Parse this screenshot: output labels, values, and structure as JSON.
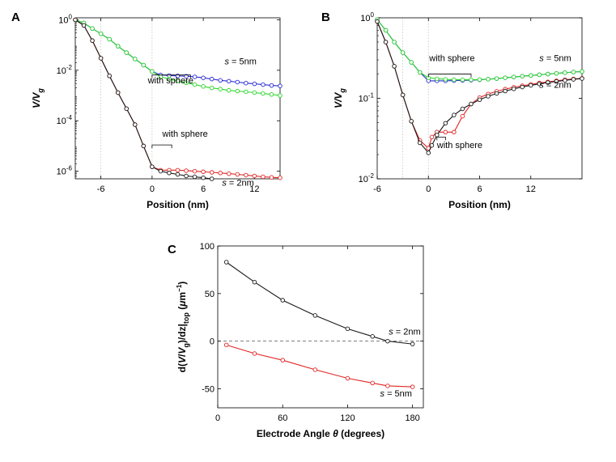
{
  "panel_letters": {
    "A": "A",
    "B": "B",
    "C": "C"
  },
  "chart_data": [
    {
      "panel": "A",
      "type": "line",
      "title": "",
      "xlabel": "Position (nm)",
      "ylabel": {
        "main": "V/V",
        "sub": "g"
      },
      "xscale": "linear",
      "yscale": "log",
      "xlim": [
        -9,
        15
      ],
      "ylim": [
        5e-07,
        1.2
      ],
      "xticks": [
        -6,
        0,
        6,
        12
      ],
      "yticks": [
        {
          "value": 1,
          "base": "10",
          "exp": "0"
        },
        {
          "value": 0.01,
          "base": "10",
          "exp": "-2"
        },
        {
          "value": 0.0001,
          "base": "10",
          "exp": "-4"
        },
        {
          "value": 1e-06,
          "base": "10",
          "exp": "-6"
        }
      ],
      "vlines": [
        -6,
        0
      ],
      "series": [
        {
          "name": "s = 5nm with sphere",
          "color": "#2b2bd6",
          "x": [
            -9,
            -8,
            -7,
            -6,
            -5,
            -4,
            -3,
            -2,
            -1,
            0,
            1,
            2,
            3,
            4,
            5,
            6,
            7,
            8,
            9,
            10,
            11,
            12,
            13,
            14,
            15
          ],
          "y": [
            1,
            0.75,
            0.45,
            0.28,
            0.17,
            0.09,
            0.05,
            0.028,
            0.016,
            0.009,
            0.0065,
            0.0062,
            0.006,
            0.0058,
            0.0055,
            0.005,
            0.0045,
            0.004,
            0.0037,
            0.0034,
            0.0031,
            0.0029,
            0.0027,
            0.0025,
            0.0024
          ]
        },
        {
          "name": "s = 5nm",
          "color": "#2bd62b",
          "x": [
            -9,
            -8,
            -7,
            -6,
            -5,
            -4,
            -3,
            -2,
            -1,
            0,
            1,
            2,
            3,
            4,
            5,
            6,
            7,
            8,
            9,
            10,
            11,
            12,
            13,
            14,
            15
          ],
          "y": [
            1,
            0.75,
            0.45,
            0.28,
            0.17,
            0.09,
            0.05,
            0.028,
            0.016,
            0.009,
            0.0055,
            0.0045,
            0.0038,
            0.0032,
            0.0027,
            0.0023,
            0.002,
            0.0018,
            0.0016,
            0.0015,
            0.0014,
            0.0013,
            0.0012,
            0.0011,
            0.001
          ]
        },
        {
          "name": "s = 2nm with sphere",
          "color": "#e02525",
          "x": [
            -9,
            -8,
            -7,
            -6,
            -5,
            -4,
            -3,
            -2,
            -1,
            0,
            1,
            2,
            3,
            4,
            5,
            6,
            7,
            8,
            9,
            10,
            11,
            12,
            13,
            14,
            15
          ],
          "y": [
            1,
            0.6,
            0.15,
            0.03,
            0.006,
            0.0013,
            0.0003,
            7e-05,
            1e-05,
            1.5e-06,
            1.1e-06,
            1.1e-06,
            1.1e-06,
            1.05e-06,
            1e-06,
            9.5e-07,
            9e-07,
            8.5e-07,
            8e-07,
            7.5e-07,
            7e-07,
            6.5e-07,
            6e-07,
            5.7e-07,
            5.5e-07
          ]
        },
        {
          "name": "s = 2nm",
          "color": "#1a1a1a",
          "x": [
            -9,
            -8,
            -7,
            -6,
            -5,
            -4,
            -3,
            -2,
            -1,
            0,
            1,
            2,
            3,
            4,
            5,
            6,
            7,
            8,
            9,
            10,
            11,
            12,
            13,
            14,
            15
          ],
          "y": [
            1,
            0.6,
            0.15,
            0.03,
            0.006,
            0.0013,
            0.0003,
            7e-05,
            1e-05,
            1.5e-06,
            1e-06,
            8.5e-07,
            7.5e-07,
            6.5e-07,
            6e-07,
            5.5e-07,
            5e-07,
            4.5e-07,
            4.2e-07,
            4e-07,
            3.8e-07,
            3.6e-07,
            3.4e-07,
            3.2e-07,
            3e-07
          ]
        }
      ],
      "annotations": [
        {
          "label_italic": "s",
          "label_rest": " = 5nm",
          "x": 8.5,
          "y": 0.017
        },
        {
          "text": "with sphere",
          "x": -0.5,
          "y": 0.003,
          "bracket": [
            0,
            0.0065,
            4.5,
            0.0065
          ]
        },
        {
          "text": "with sphere",
          "x": 1.2,
          "y": 2.3e-05,
          "bracket": [
            0,
            1.1e-05,
            2.3,
            1.1e-05
          ]
        },
        {
          "label_italic": "s",
          "label_rest": " = 2nm",
          "x": 8.2,
          "y": 2.7e-07
        }
      ]
    },
    {
      "panel": "B",
      "type": "line",
      "title": "",
      "xlabel": "Position (nm)",
      "ylabel": {
        "main": "V/V",
        "sub": "g"
      },
      "xscale": "linear",
      "yscale": "log",
      "xlim": [
        -6,
        18
      ],
      "ylim": [
        0.01,
        1
      ],
      "xticks": [
        -6,
        0,
        6,
        12
      ],
      "yticks": [
        {
          "value": 1,
          "base": "10",
          "exp": "0"
        },
        {
          "value": 0.1,
          "base": "10",
          "exp": "-1"
        },
        {
          "value": 0.01,
          "base": "10",
          "exp": "-2"
        }
      ],
      "vlines": [
        -3,
        0
      ],
      "series": [
        {
          "name": "s = 5nm with sphere",
          "color": "#2b2bd6",
          "x": [
            -6,
            -5,
            -4,
            -3,
            -2,
            -1,
            0,
            1,
            2,
            3,
            4,
            5,
            6,
            7,
            8,
            9,
            10,
            11,
            12,
            13,
            14,
            15,
            16,
            17,
            18
          ],
          "y": [
            0.95,
            0.7,
            0.5,
            0.37,
            0.28,
            0.21,
            0.165,
            0.165,
            0.165,
            0.166,
            0.167,
            0.168,
            0.17,
            0.173,
            0.176,
            0.18,
            0.184,
            0.188,
            0.192,
            0.196,
            0.2,
            0.204,
            0.208,
            0.212,
            0.215
          ]
        },
        {
          "name": "s = 5nm",
          "color": "#2bd62b",
          "x": [
            -6,
            -5,
            -4,
            -3,
            -2,
            -1,
            0,
            1,
            2,
            3,
            4,
            5,
            6,
            7,
            8,
            9,
            10,
            11,
            12,
            13,
            14,
            15,
            16,
            17,
            18
          ],
          "y": [
            0.95,
            0.7,
            0.5,
            0.37,
            0.28,
            0.21,
            0.18,
            0.175,
            0.172,
            0.17,
            0.17,
            0.17,
            0.171,
            0.173,
            0.176,
            0.18,
            0.184,
            0.188,
            0.192,
            0.196,
            0.2,
            0.204,
            0.208,
            0.212,
            0.215
          ]
        },
        {
          "name": "s = 2nm with sphere",
          "color": "#e02525",
          "x": [
            -6,
            -5,
            -4,
            -3,
            -2,
            -1,
            0,
            0.4,
            1,
            2,
            3,
            4,
            5,
            6,
            7,
            8,
            9,
            10,
            11,
            12,
            13,
            14,
            15,
            16,
            17,
            18
          ],
          "y": [
            0.9,
            0.5,
            0.25,
            0.11,
            0.052,
            0.03,
            0.024,
            0.033,
            0.038,
            0.038,
            0.038,
            0.06,
            0.085,
            0.102,
            0.113,
            0.122,
            0.13,
            0.137,
            0.143,
            0.149,
            0.155,
            0.16,
            0.165,
            0.17,
            0.174,
            0.177
          ]
        },
        {
          "name": "s = 2nm",
          "color": "#1a1a1a",
          "x": [
            -6,
            -5,
            -4,
            -3,
            -2,
            -1,
            0,
            0.4,
            1,
            2,
            3,
            4,
            5,
            6,
            7,
            8,
            9,
            10,
            11,
            12,
            13,
            14,
            15,
            16,
            17,
            18
          ],
          "y": [
            0.9,
            0.5,
            0.25,
            0.11,
            0.052,
            0.028,
            0.021,
            0.026,
            0.035,
            0.049,
            0.062,
            0.074,
            0.085,
            0.096,
            0.106,
            0.115,
            0.123,
            0.131,
            0.138,
            0.145,
            0.151,
            0.157,
            0.162,
            0.167,
            0.172,
            0.176
          ]
        }
      ],
      "annotations": [
        {
          "label_italic": "s",
          "label_rest": " = 5nm",
          "x": 13,
          "y": 0.29
        },
        {
          "text": "with sphere",
          "x": 0.1,
          "y": 0.29,
          "bracket": [
            0,
            0.2,
            5.0,
            0.2
          ]
        },
        {
          "label_italic": "s",
          "label_rest": " = 2nm",
          "x": 13,
          "y": 0.135
        },
        {
          "text": "with sphere",
          "x": 1.0,
          "y": 0.024,
          "bracket": [
            1.0,
            0.033,
            2.0,
            0.033
          ]
        }
      ]
    },
    {
      "panel": "C",
      "type": "line",
      "title": "",
      "xlabel": {
        "main": "Electrode Angle ",
        "italic": "θ",
        "rest": " (degrees)"
      },
      "ylabel": {
        "part1": "d(",
        "italic1": "V",
        "part2": "/",
        "italic2": "V",
        "sub1": "g",
        "part3": ")/dz|",
        "sub2": "top",
        "part4": " (",
        "italic3": "μ",
        "part5": "m",
        "sup": "−1",
        "part6": ")"
      },
      "xscale": "linear",
      "yscale": "linear",
      "xlim": [
        0,
        190
      ],
      "ylim": [
        -70,
        100
      ],
      "xticks": [
        0,
        60,
        120,
        180
      ],
      "yticks": [
        100,
        50,
        0,
        -50
      ],
      "hline": 0,
      "series": [
        {
          "name": "s = 2nm",
          "color": "#1a1a1a",
          "x": [
            8,
            34,
            60,
            90,
            120,
            143,
            157,
            180
          ],
          "y": [
            83,
            62,
            43,
            27,
            13,
            5,
            0,
            -3
          ]
        },
        {
          "name": "s = 5nm",
          "color": "#e02525",
          "x": [
            8,
            34,
            60,
            90,
            120,
            143,
            157,
            180
          ],
          "y": [
            -4,
            -13,
            -20,
            -30,
            -39,
            -44,
            -47,
            -48
          ]
        }
      ],
      "annotations": [
        {
          "label_italic": "s",
          "label_rest": " = 2nm",
          "x": 158,
          "y": 7
        },
        {
          "label_italic": "s",
          "label_rest": " = 5nm",
          "x": 150,
          "y": -58
        }
      ]
    }
  ]
}
